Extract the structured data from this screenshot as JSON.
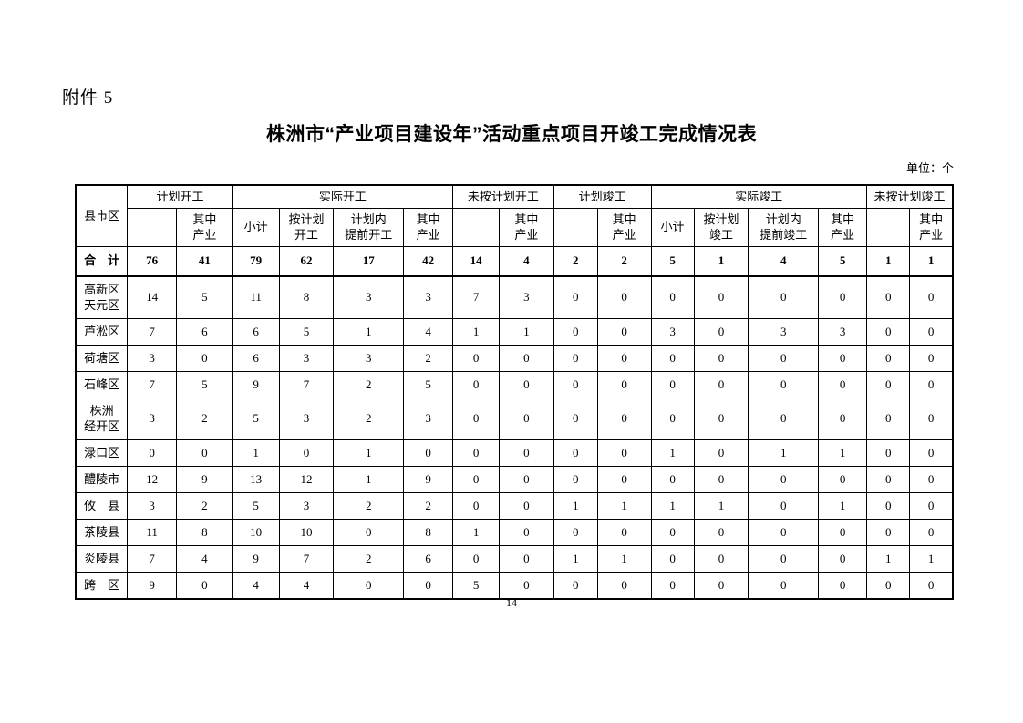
{
  "page": {
    "attachment_label": "附件 5",
    "title": "株洲市“产业项目建设年”活动重点项目开竣工完成情况表",
    "unit_note": "单位：个",
    "page_number": "14"
  },
  "table": {
    "corner_label": "县市区",
    "groups": [
      {
        "label": "计划开工",
        "sub": [
          "",
          "其中\n产业"
        ]
      },
      {
        "label": "实际开工",
        "sub": [
          "小计",
          "按计划\n开工",
          "计划内\n提前开工",
          "其中\n产业"
        ]
      },
      {
        "label": "未按计划开工",
        "sub": [
          "",
          "其中\n产业"
        ]
      },
      {
        "label": "计划竣工",
        "sub": [
          "",
          "其中\n产业"
        ]
      },
      {
        "label": "实际竣工",
        "sub": [
          "小计",
          "按计划\n竣工",
          "计划内\n提前竣工",
          "其中\n产业"
        ]
      },
      {
        "label": "未按计划竣工",
        "sub": [
          "",
          "其中\n产业"
        ]
      }
    ],
    "rows": [
      {
        "label": "合　计",
        "total": true,
        "values": [
          76,
          41,
          79,
          62,
          17,
          42,
          14,
          4,
          2,
          2,
          5,
          1,
          4,
          5,
          1,
          1
        ]
      },
      {
        "label": "高新区\n天元区",
        "total": false,
        "values": [
          14,
          5,
          11,
          8,
          3,
          3,
          7,
          3,
          0,
          0,
          0,
          0,
          0,
          0,
          0,
          0
        ]
      },
      {
        "label": "芦淞区",
        "total": false,
        "values": [
          7,
          6,
          6,
          5,
          1,
          4,
          1,
          1,
          0,
          0,
          3,
          0,
          3,
          3,
          0,
          0
        ]
      },
      {
        "label": "荷塘区",
        "total": false,
        "values": [
          3,
          0,
          6,
          3,
          3,
          2,
          0,
          0,
          0,
          0,
          0,
          0,
          0,
          0,
          0,
          0
        ]
      },
      {
        "label": "石峰区",
        "total": false,
        "values": [
          7,
          5,
          9,
          7,
          2,
          5,
          0,
          0,
          0,
          0,
          0,
          0,
          0,
          0,
          0,
          0
        ]
      },
      {
        "label": "株洲\n经开区",
        "total": false,
        "values": [
          3,
          2,
          5,
          3,
          2,
          3,
          0,
          0,
          0,
          0,
          0,
          0,
          0,
          0,
          0,
          0
        ]
      },
      {
        "label": "渌口区",
        "total": false,
        "values": [
          0,
          0,
          1,
          0,
          1,
          0,
          0,
          0,
          0,
          0,
          1,
          0,
          1,
          1,
          0,
          0
        ]
      },
      {
        "label": "醴陵市",
        "total": false,
        "values": [
          12,
          9,
          13,
          12,
          1,
          9,
          0,
          0,
          0,
          0,
          0,
          0,
          0,
          0,
          0,
          0
        ]
      },
      {
        "label": "攸　县",
        "total": false,
        "values": [
          3,
          2,
          5,
          3,
          2,
          2,
          0,
          0,
          1,
          1,
          1,
          1,
          0,
          1,
          0,
          0
        ]
      },
      {
        "label": "茶陵县",
        "total": false,
        "values": [
          11,
          8,
          10,
          10,
          0,
          8,
          1,
          0,
          0,
          0,
          0,
          0,
          0,
          0,
          0,
          0
        ]
      },
      {
        "label": "炎陵县",
        "total": false,
        "values": [
          7,
          4,
          9,
          7,
          2,
          6,
          0,
          0,
          1,
          1,
          0,
          0,
          0,
          0,
          1,
          1
        ]
      },
      {
        "label": "跨　区",
        "total": false,
        "values": [
          9,
          0,
          4,
          4,
          0,
          0,
          5,
          0,
          0,
          0,
          0,
          0,
          0,
          0,
          0,
          0
        ]
      }
    ]
  }
}
